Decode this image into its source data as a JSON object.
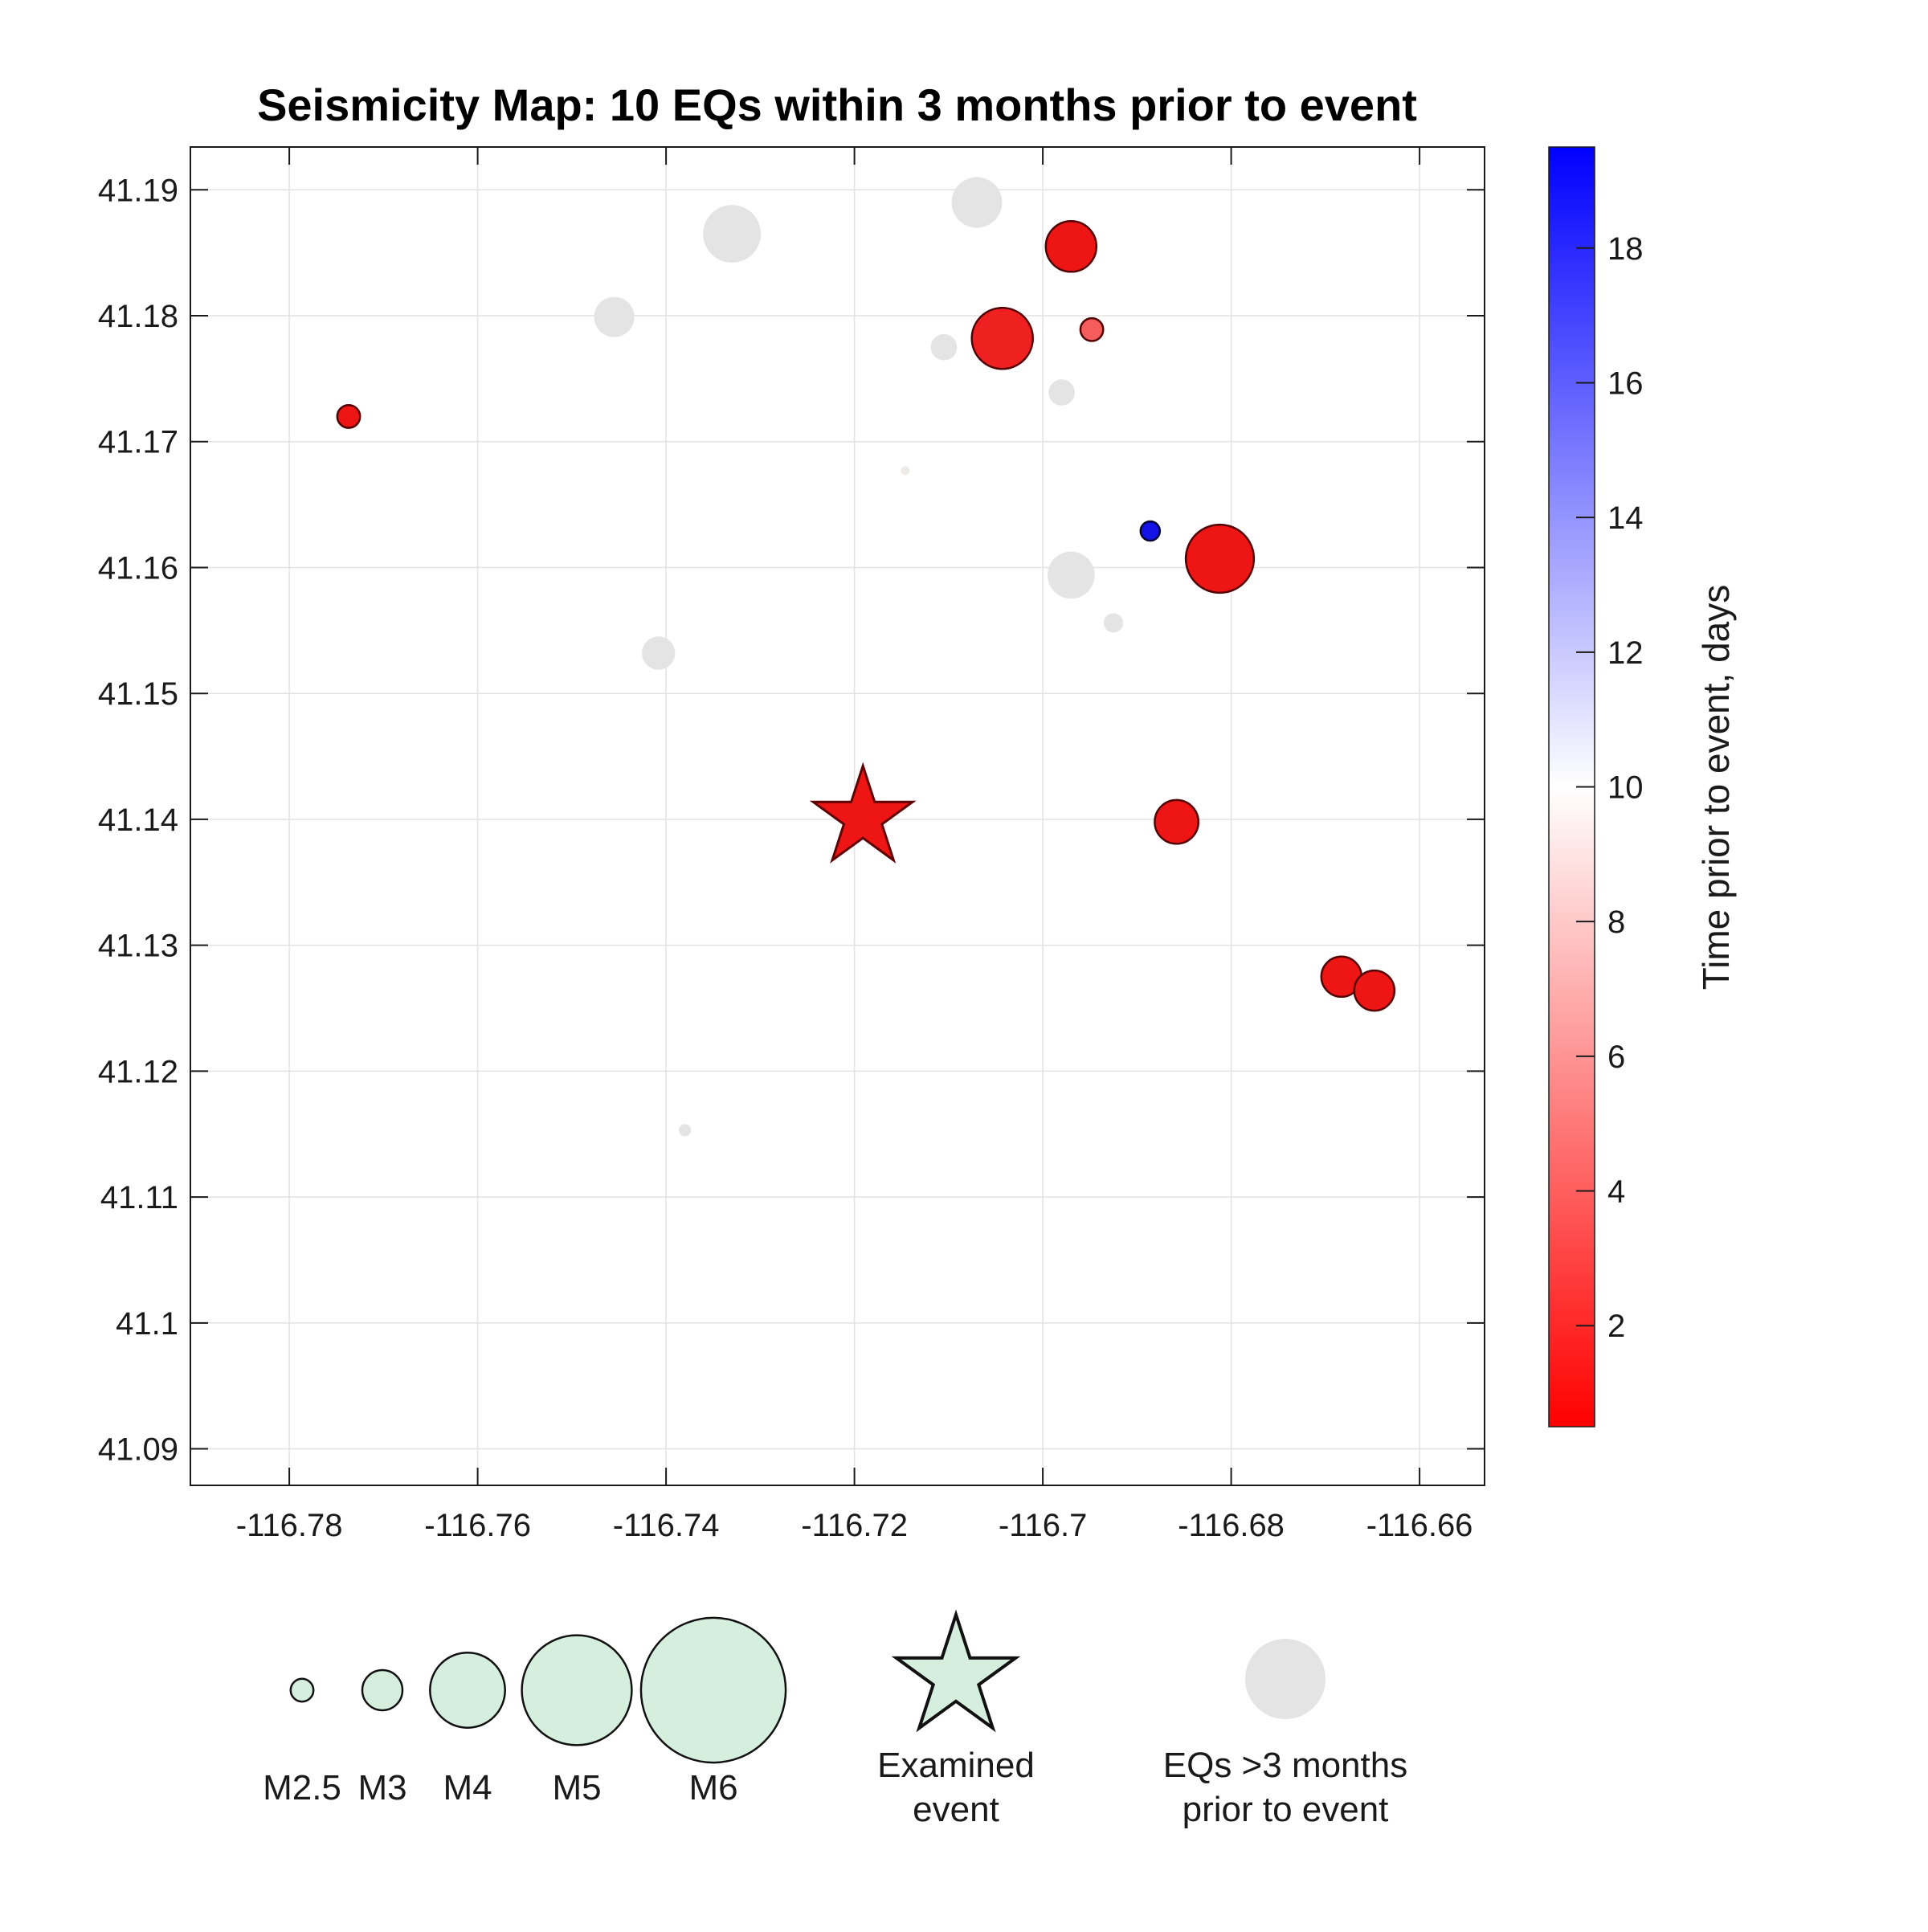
{
  "title": "Seismicity Map: 10 EQs within 3 months prior to event",
  "axes": {
    "xlim": [
      -116.7905,
      -116.6531
    ],
    "ylim": [
      41.0871,
      41.1934
    ],
    "xticks": [
      -116.78,
      -116.76,
      -116.74,
      -116.72,
      -116.7,
      -116.68,
      -116.66
    ],
    "xtick_labels": [
      "-116.78",
      "-116.76",
      "-116.74",
      "-116.72",
      "-116.7",
      "-116.68",
      "-116.66"
    ],
    "yticks": [
      41.09,
      41.1,
      41.11,
      41.12,
      41.13,
      41.14,
      41.15,
      41.16,
      41.17,
      41.18,
      41.19
    ],
    "ytick_labels": [
      "41.09",
      "41.1",
      "41.11",
      "41.12",
      "41.13",
      "41.14",
      "41.15",
      "41.16",
      "41.17",
      "41.18",
      "41.19"
    ],
    "grid": "on"
  },
  "colorbar": {
    "label": "Time prior to event, days",
    "min": 0.5,
    "max": 19.5,
    "ticks": [
      2,
      4,
      6,
      8,
      10,
      12,
      14,
      16,
      18
    ],
    "gradient": [
      "#ff0000",
      "#ffffff",
      "#0000ff"
    ]
  },
  "chart_data": {
    "type": "scatter",
    "title": "Seismicity Map: 10 EQs within 3 months prior to event",
    "x_is": "longitude",
    "y_is": "latitude",
    "series": [
      {
        "name": "EQs >3 months prior to event",
        "color": "#e4e4e4",
        "points": [
          {
            "lon": -116.707,
            "lat": 41.189,
            "mag": 3.3
          },
          {
            "lon": -116.733,
            "lat": 41.1865,
            "mag": 3.5
          },
          {
            "lon": -116.7455,
            "lat": 41.1799,
            "mag": 3.0
          },
          {
            "lon": -116.7105,
            "lat": 41.1775,
            "mag": 2.6
          },
          {
            "lon": -116.698,
            "lat": 41.1739,
            "mag": 2.6
          },
          {
            "lon": -116.697,
            "lat": 41.1594,
            "mag": 3.2
          },
          {
            "lon": -116.6925,
            "lat": 41.1556,
            "mag": 2.4
          },
          {
            "lon": -116.7408,
            "lat": 41.1532,
            "mag": 2.8
          },
          {
            "lon": -116.738,
            "lat": 41.1153,
            "mag": 2.2
          }
        ]
      },
      {
        "name": "EQs within 3 months prior to event",
        "points": [
          {
            "lon": -116.697,
            "lat": 41.1855,
            "mag": 3.3,
            "days": 1,
            "color": "#ee1515",
            "edge": "#550000"
          },
          {
            "lon": -116.7043,
            "lat": 41.1782,
            "mag": 3.6,
            "days": 2,
            "color": "#ee2020",
            "edge": "#550000"
          },
          {
            "lon": -116.6948,
            "lat": 41.1789,
            "mag": 2.5,
            "days": 4,
            "color": "#f55c5c",
            "edge": "#550000"
          },
          {
            "lon": -116.7737,
            "lat": 41.172,
            "mag": 2.5,
            "days": 1,
            "color": "#ee1515",
            "edge": "#550000"
          },
          {
            "lon": -116.7146,
            "lat": 41.1677,
            "mag": 2.1,
            "days": 9.5,
            "color": "#eeebeb",
            "edge": "none"
          },
          {
            "lon": -116.6886,
            "lat": 41.1629,
            "mag": 2.4,
            "days": 19,
            "color": "#1313e6",
            "edge": "#000033"
          },
          {
            "lon": -116.6812,
            "lat": 41.1607,
            "mag": 3.8,
            "days": 1,
            "color": "#ee1515",
            "edge": "#550000"
          },
          {
            "lon": -116.6858,
            "lat": 41.1398,
            "mag": 3.1,
            "days": 1,
            "color": "#ee1515",
            "edge": "#550000"
          },
          {
            "lon": -116.6683,
            "lat": 41.1275,
            "mag": 3.0,
            "days": 1,
            "color": "#ee1515",
            "edge": "#550000"
          },
          {
            "lon": -116.6648,
            "lat": 41.1264,
            "mag": 3.0,
            "days": 1.5,
            "color": "#ee1515",
            "edge": "#550000"
          }
        ]
      }
    ],
    "examined_event": {
      "lon": -116.7191,
      "lat": 41.1401,
      "marker": "star",
      "color": "#ee1515",
      "edge": "#600000"
    }
  },
  "legend": {
    "marker_fill": "#d6eedd",
    "size_items": [
      {
        "label": "M2.5",
        "mag": 2.5
      },
      {
        "label": "M3",
        "mag": 3
      },
      {
        "label": "M4",
        "mag": 4
      },
      {
        "label": "M5",
        "mag": 5
      },
      {
        "label": "M6",
        "mag": 6
      }
    ],
    "examined": {
      "line1": "Examined",
      "line2": "event"
    },
    "prior_eqs": {
      "line1": "EQs >3 months",
      "line2": "prior to event",
      "fill": "#e4e4e4"
    }
  }
}
